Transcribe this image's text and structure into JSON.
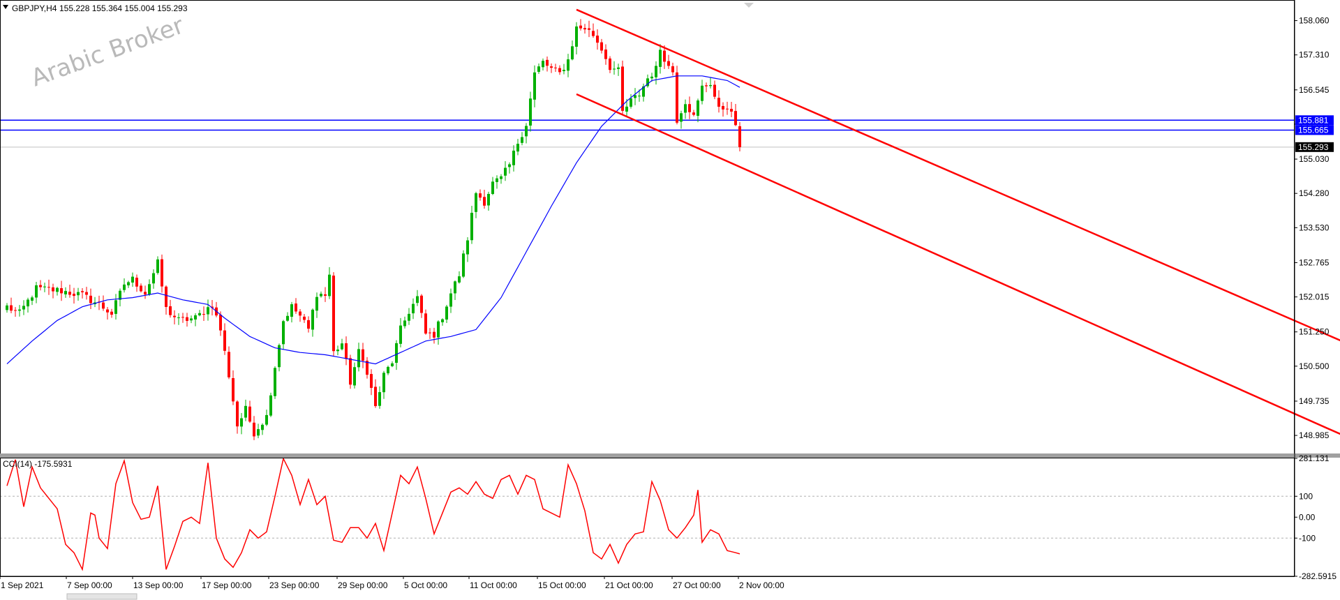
{
  "header": {
    "symbol": "GBPJPY,H4",
    "ohlc": "155.228 155.364 155.004 155.293"
  },
  "watermark": "Arabic Broker",
  "chart_data": [
    {
      "type": "candlestick",
      "symbol": "GBPJPY",
      "timeframe": "H4",
      "ylim": [
        148.62,
        158.45
      ],
      "y_ticks": [
        "158.060",
        "157.310",
        "156.545",
        "155.795",
        "155.030",
        "154.280",
        "153.530",
        "152.765",
        "152.015",
        "151.250",
        "150.500",
        "149.735",
        "148.985"
      ],
      "x_ticks": [
        "1 Sep 2021",
        "7 Sep 00:00",
        "13 Sep 00:00",
        "17 Sep 00:00",
        "23 Sep 00:00",
        "29 Sep 00:00",
        "5 Oct 00:00",
        "11 Oct 00:00",
        "15 Oct 00:00",
        "21 Oct 00:00",
        "27 Oct 00:00",
        "2 Nov 00:00"
      ],
      "last_price": 155.293,
      "last_price_label": "155.293",
      "horizontal_levels": [
        {
          "value": 155.881,
          "label": "155.881",
          "color": "#0000ff"
        },
        {
          "value": 155.665,
          "label": "155.665",
          "color": "#0000ff"
        }
      ],
      "trend_lines": [
        {
          "color": "#ff0000",
          "points": [
            {
              "bar": 136,
              "price": 158.3
            },
            {
              "bar": 320,
              "price": 151.0
            }
          ]
        },
        {
          "color": "#ff0000",
          "points": [
            {
              "bar": 136,
              "price": 156.45
            },
            {
              "bar": 320,
              "price": 148.95
            }
          ]
        }
      ],
      "moving_average_color": "#0000ff",
      "colors": {
        "up": "#00b000",
        "down": "#ff0000",
        "grid_level": "#c0c0c0"
      },
      "close_path_keypoints": [
        [
          0,
          151.8
        ],
        [
          3,
          151.65
        ],
        [
          7,
          152.2
        ],
        [
          13,
          152.15
        ],
        [
          18,
          152.05
        ],
        [
          22,
          151.85
        ],
        [
          25,
          151.65
        ],
        [
          28,
          152.3
        ],
        [
          30,
          152.4
        ],
        [
          33,
          152.1
        ],
        [
          36,
          152.75
        ],
        [
          38,
          151.75
        ],
        [
          41,
          151.5
        ],
        [
          45,
          151.55
        ],
        [
          49,
          151.85
        ],
        [
          51,
          151.3
        ],
        [
          53,
          150.3
        ],
        [
          55,
          149.2
        ],
        [
          57,
          149.55
        ],
        [
          59,
          149.05
        ],
        [
          62,
          149.4
        ],
        [
          64,
          150.5
        ],
        [
          66,
          151.5
        ],
        [
          68,
          151.8
        ],
        [
          70,
          151.6
        ],
        [
          72,
          151.3
        ],
        [
          74,
          152.1
        ],
        [
          76,
          152.05
        ],
        [
          77,
          152.5
        ],
        [
          78,
          150.8
        ],
        [
          80,
          151.0
        ],
        [
          82,
          150.15
        ],
        [
          84,
          150.8
        ],
        [
          86,
          150.4
        ],
        [
          87,
          150.0
        ],
        [
          88,
          149.6
        ],
        [
          90,
          150.3
        ],
        [
          92,
          150.6
        ],
        [
          94,
          151.3
        ],
        [
          96,
          151.7
        ],
        [
          98,
          152.0
        ],
        [
          100,
          151.2
        ],
        [
          102,
          151.2
        ],
        [
          104,
          151.6
        ],
        [
          106,
          152.1
        ],
        [
          108,
          152.5
        ],
        [
          110,
          153.3
        ],
        [
          112,
          154.3
        ],
        [
          114,
          154.1
        ],
        [
          116,
          154.5
        ],
        [
          118,
          154.6
        ],
        [
          120,
          154.9
        ],
        [
          122,
          155.4
        ],
        [
          124,
          155.8
        ],
        [
          126,
          156.9
        ],
        [
          128,
          157.15
        ],
        [
          130,
          157.0
        ],
        [
          132,
          156.9
        ],
        [
          134,
          157.2
        ],
        [
          136,
          157.9
        ],
        [
          138,
          157.9
        ],
        [
          140,
          157.75
        ],
        [
          142,
          157.45
        ],
        [
          144,
          157.05
        ],
        [
          146,
          156.95
        ],
        [
          147,
          156.05
        ],
        [
          149,
          156.3
        ],
        [
          151,
          156.45
        ],
        [
          153,
          156.8
        ],
        [
          155,
          157.0
        ],
        [
          156,
          157.45
        ],
        [
          158,
          157.05
        ],
        [
          159,
          156.95
        ],
        [
          160,
          155.9
        ],
        [
          162,
          156.3
        ],
        [
          164,
          155.95
        ],
        [
          166,
          156.6
        ],
        [
          168,
          156.7
        ],
        [
          170,
          156.1
        ],
        [
          172,
          156.2
        ],
        [
          174,
          155.8
        ],
        [
          175,
          155.3
        ]
      ],
      "ma_path": [
        [
          0,
          150.55
        ],
        [
          6,
          151.05
        ],
        [
          12,
          151.5
        ],
        [
          18,
          151.8
        ],
        [
          24,
          151.95
        ],
        [
          30,
          152.0
        ],
        [
          36,
          152.1
        ],
        [
          42,
          151.95
        ],
        [
          48,
          151.85
        ],
        [
          52,
          151.55
        ],
        [
          58,
          151.15
        ],
        [
          64,
          150.9
        ],
        [
          70,
          150.8
        ],
        [
          76,
          150.75
        ],
        [
          82,
          150.65
        ],
        [
          88,
          150.55
        ],
        [
          94,
          150.8
        ],
        [
          100,
          151.05
        ],
        [
          106,
          151.15
        ],
        [
          112,
          151.3
        ],
        [
          118,
          152.0
        ],
        [
          124,
          153.0
        ],
        [
          130,
          154.0
        ],
        [
          136,
          154.95
        ],
        [
          142,
          155.75
        ],
        [
          148,
          156.3
        ],
        [
          154,
          156.75
        ],
        [
          160,
          156.85
        ],
        [
          166,
          156.85
        ],
        [
          172,
          156.75
        ],
        [
          175,
          156.6
        ]
      ]
    },
    {
      "type": "line",
      "title": "CCI(14)",
      "current_value": "-175.5931",
      "ylim": [
        -282.5915,
        281.131
      ],
      "y_ticks": [
        "281.131",
        "100",
        "0.00",
        "-100",
        "-282.5915"
      ],
      "level_lines": [
        100,
        -100
      ],
      "color": "#ff0000",
      "keypoints": [
        [
          0,
          150
        ],
        [
          2,
          275
        ],
        [
          4,
          50
        ],
        [
          6,
          240
        ],
        [
          8,
          140
        ],
        [
          12,
          40
        ],
        [
          14,
          -130
        ],
        [
          16,
          -170
        ],
        [
          18,
          -250
        ],
        [
          20,
          20
        ],
        [
          21,
          10
        ],
        [
          22,
          -100
        ],
        [
          24,
          -150
        ],
        [
          26,
          160
        ],
        [
          28,
          270
        ],
        [
          30,
          70
        ],
        [
          32,
          -10
        ],
        [
          34,
          0
        ],
        [
          36,
          150
        ],
        [
          38,
          -250
        ],
        [
          40,
          -140
        ],
        [
          42,
          -20
        ],
        [
          44,
          0
        ],
        [
          46,
          -30
        ],
        [
          48,
          260
        ],
        [
          50,
          -100
        ],
        [
          52,
          -200
        ],
        [
          54,
          -240
        ],
        [
          56,
          -170
        ],
        [
          58,
          -60
        ],
        [
          60,
          -100
        ],
        [
          62,
          -70
        ],
        [
          64,
          100
        ],
        [
          66,
          280
        ],
        [
          68,
          200
        ],
        [
          70,
          60
        ],
        [
          72,
          180
        ],
        [
          74,
          60
        ],
        [
          76,
          100
        ],
        [
          78,
          -110
        ],
        [
          80,
          -120
        ],
        [
          82,
          -50
        ],
        [
          84,
          -50
        ],
        [
          86,
          -100
        ],
        [
          88,
          -30
        ],
        [
          90,
          -160
        ],
        [
          92,
          20
        ],
        [
          94,
          200
        ],
        [
          96,
          160
        ],
        [
          98,
          240
        ],
        [
          100,
          90
        ],
        [
          102,
          -80
        ],
        [
          104,
          20
        ],
        [
          106,
          120
        ],
        [
          108,
          140
        ],
        [
          110,
          110
        ],
        [
          112,
          170
        ],
        [
          114,
          110
        ],
        [
          116,
          90
        ],
        [
          118,
          180
        ],
        [
          120,
          200
        ],
        [
          122,
          110
        ],
        [
          124,
          200
        ],
        [
          126,
          180
        ],
        [
          128,
          40
        ],
        [
          130,
          20
        ],
        [
          132,
          0
        ],
        [
          134,
          250
        ],
        [
          136,
          160
        ],
        [
          138,
          30
        ],
        [
          140,
          -170
        ],
        [
          142,
          -200
        ],
        [
          144,
          -130
        ],
        [
          146,
          -220
        ],
        [
          148,
          -130
        ],
        [
          150,
          -80
        ],
        [
          152,
          -70
        ],
        [
          154,
          170
        ],
        [
          156,
          80
        ],
        [
          158,
          -60
        ],
        [
          160,
          -100
        ],
        [
          162,
          -50
        ],
        [
          164,
          10
        ],
        [
          165,
          130
        ],
        [
          166,
          -120
        ],
        [
          168,
          -60
        ],
        [
          170,
          -80
        ],
        [
          172,
          -160
        ],
        [
          174,
          -170
        ],
        [
          175,
          -175.59
        ]
      ]
    }
  ]
}
